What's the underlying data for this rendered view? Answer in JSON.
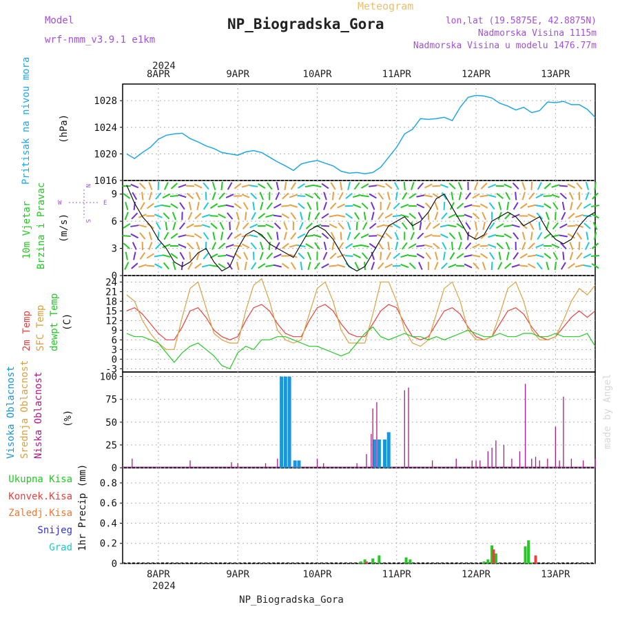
{
  "header": {
    "model_label": "Model",
    "model_value": "wrf-nmm_v3.9.1  e1km",
    "meteogram_label": "Meteogram",
    "station": "NP_Biogradska_Gora",
    "coords": "lon,lat (19.5875E, 42.8875N)",
    "altitude": "Nadmorska Visina 1115m",
    "model_altitude": "Nadmorska Visina u modelu 1476.77m",
    "year_top": "2024",
    "year_bottom": "2024",
    "footer_station": "NP_Biogradska_Gora",
    "watermark": "made by Angel"
  },
  "colors": {
    "pressure": "#1ea6e6",
    "temp2m": "#e8403f",
    "sfc": "#d9a040",
    "dewpt": "#22c922",
    "low_cloud": "#b0188c",
    "high_cloud": "#1b95dc",
    "precip_total": "#22c922",
    "precip_conv": "#e8403f",
    "grid": "#b0b0b0",
    "purple_text": "#a050d8"
  },
  "axis_days": [
    "8APR",
    "9APR",
    "10APR",
    "11APR",
    "12APR",
    "13APR"
  ],
  "panels": {
    "pressure": {
      "ylabel1": "Pritisak na nivou mora",
      "unit": "(hPa)",
      "ticks": [
        "1016",
        "1020",
        "1024",
        "1028"
      ]
    },
    "wind": {
      "ylabel1": "10m Vjetar",
      "ylabel2": "Brzina i Pravac",
      "unit": "(m/s)",
      "ticks": [
        "0",
        "3",
        "6",
        "9"
      ],
      "compass_n": "N",
      "compass_w": "W",
      "compass_e": "E",
      "compass_s": "S"
    },
    "temp": {
      "ylabel1": "2m Temp",
      "ylabel2": "SFC Temp",
      "ylabel3": "dewpt Temp",
      "unit": "(C)",
      "ticks": [
        "-3",
        "0",
        "3",
        "6",
        "9",
        "12",
        "15",
        "18",
        "21",
        "24"
      ]
    },
    "cloud": {
      "ylabel1": "Visoka Oblacnost",
      "ylabel2": "Srednja Oblacnost",
      "ylabel3": "Niska Oblacnost",
      "unit": "(%)",
      "ticks": [
        "0",
        "25",
        "50",
        "75",
        "100"
      ]
    },
    "precip": {
      "ylabel": "1hr Precip (mm)",
      "ticks": [
        "0",
        "0.2",
        "0.4",
        "0.6",
        "0.8"
      ],
      "legend": [
        "Ukupna Kisa",
        "Konvek.Kisa",
        "Zaledj.Kisa",
        "Snijeg",
        "Grad"
      ]
    }
  },
  "chart_data": [
    {
      "type": "line",
      "title": "",
      "ylabel": "Pritisak na nivou mora (hPa)",
      "ylim": [
        1016,
        1030.5
      ],
      "x": [
        7.6,
        7.7,
        7.8,
        7.9,
        8.0,
        8.1,
        8.2,
        8.3,
        8.4,
        8.5,
        8.6,
        8.7,
        8.8,
        8.9,
        9.0,
        9.1,
        9.2,
        9.3,
        9.4,
        9.5,
        9.6,
        9.7,
        9.8,
        9.9,
        10.0,
        10.1,
        10.2,
        10.3,
        10.4,
        10.5,
        10.6,
        10.7,
        10.8,
        10.9,
        11.0,
        11.1,
        11.2,
        11.3,
        11.4,
        11.5,
        11.6,
        11.7,
        11.8,
        11.9,
        12.0,
        12.1,
        12.2,
        12.3,
        12.4,
        12.5,
        12.6,
        12.7,
        12.8,
        12.9,
        13.0,
        13.1,
        13.2,
        13.3,
        13.4,
        13.5
      ],
      "series": [
        {
          "values": [
            1020.0,
            1019.3,
            1020.2,
            1021.0,
            1022.2,
            1022.8,
            1023.0,
            1023.1,
            1022.3,
            1021.8,
            1021.2,
            1020.8,
            1020.2,
            1020.0,
            1019.8,
            1020.3,
            1020.5,
            1020.2,
            1019.5,
            1018.8,
            1018.2,
            1017.5,
            1018.5,
            1018.8,
            1019.0,
            1018.6,
            1018.2,
            1017.4,
            1017.1,
            1017.2,
            1017.0,
            1017.2,
            1018.0,
            1019.5,
            1021.0,
            1023.0,
            1023.7,
            1025.3,
            1025.2,
            1025.3,
            1025.5,
            1025.0,
            1027.0,
            1028.5,
            1028.8,
            1028.7,
            1028.4,
            1027.6,
            1027.2,
            1026.6,
            1027.0,
            1026.2,
            1026.5,
            1027.8,
            1027.7,
            1027.9,
            1027.4,
            1027.4,
            1026.7,
            1025.5
          ],
          "name": ""
        }
      ]
    },
    {
      "type": "line",
      "title": "",
      "ylabel": "10m Vjetar Brzina i Pravac (m/s)",
      "ylim": [
        0,
        10.5
      ],
      "x": [
        7.6,
        7.7,
        7.8,
        7.9,
        8.0,
        8.1,
        8.2,
        8.3,
        8.4,
        8.5,
        8.6,
        8.7,
        8.8,
        8.9,
        9.0,
        9.1,
        9.2,
        9.3,
        9.4,
        9.5,
        9.6,
        9.7,
        9.8,
        9.9,
        10.0,
        10.1,
        10.2,
        10.3,
        10.4,
        10.5,
        10.6,
        10.7,
        10.8,
        10.9,
        11.0,
        11.1,
        11.2,
        11.3,
        11.4,
        11.5,
        11.6,
        11.7,
        11.8,
        11.9,
        12.0,
        12.1,
        12.2,
        12.3,
        12.4,
        12.5,
        12.6,
        12.7,
        12.8,
        12.9,
        13.0,
        13.1,
        13.2,
        13.3,
        13.4,
        13.5
      ],
      "series": [
        {
          "name": "",
          "values": [
            10.0,
            8.0,
            6.5,
            5.5,
            4.0,
            3.0,
            1.5,
            1.0,
            1.5,
            2.5,
            3.0,
            1.5,
            0.5,
            1.0,
            3.0,
            4.5,
            5.0,
            4.5,
            3.5,
            3.0,
            2.5,
            2.0,
            3.5,
            5.0,
            5.5,
            5.0,
            4.0,
            2.5,
            1.0,
            0.5,
            1.0,
            2.5,
            4.0,
            5.5,
            6.0,
            6.5,
            5.5,
            6.0,
            7.0,
            8.5,
            9.0,
            7.5,
            6.0,
            4.5,
            4.0,
            4.5,
            6.0,
            6.5,
            7.0,
            6.5,
            5.5,
            6.0,
            6.5,
            5.0,
            4.0,
            3.5,
            4.0,
            5.5,
            6.5,
            7.0
          ]
        }
      ]
    },
    {
      "type": "line",
      "title": "",
      "ylabel": "2m Temp / SFC Temp / dewpt Temp (C)",
      "ylim": [
        -4,
        26
      ],
      "x": [
        7.6,
        7.7,
        7.8,
        7.9,
        8.0,
        8.1,
        8.2,
        8.3,
        8.4,
        8.5,
        8.6,
        8.7,
        8.8,
        8.9,
        9.0,
        9.1,
        9.2,
        9.3,
        9.4,
        9.5,
        9.6,
        9.7,
        9.8,
        9.9,
        10.0,
        10.1,
        10.2,
        10.3,
        10.4,
        10.5,
        10.6,
        10.7,
        10.8,
        10.9,
        11.0,
        11.1,
        11.2,
        11.3,
        11.4,
        11.5,
        11.6,
        11.7,
        11.8,
        11.9,
        12.0,
        12.1,
        12.2,
        12.3,
        12.4,
        12.5,
        12.6,
        12.7,
        12.8,
        12.9,
        13.0,
        13.1,
        13.2,
        13.3,
        13.4,
        13.5
      ],
      "series": [
        {
          "name": "2m Temp",
          "values": [
            15,
            16,
            14,
            11,
            8,
            6,
            6,
            10,
            15,
            16,
            13,
            9,
            7,
            6,
            7,
            12,
            16,
            17,
            15,
            11,
            8,
            7,
            7,
            12,
            16,
            17,
            15,
            11,
            8,
            7,
            7,
            11,
            15,
            17,
            16,
            11,
            7,
            6,
            7,
            11,
            15,
            16,
            14,
            10,
            7,
            6,
            7,
            11,
            15,
            16,
            14,
            10,
            7,
            6,
            7,
            10,
            13,
            15,
            13,
            15
          ]
        },
        {
          "name": "SFC Temp",
          "values": [
            20,
            18,
            12,
            8,
            5,
            3,
            3,
            13,
            22,
            24,
            16,
            8,
            6,
            5,
            5,
            15,
            23,
            25,
            18,
            9,
            6,
            5,
            6,
            14,
            22,
            24,
            18,
            9,
            5,
            5,
            5,
            14,
            24,
            24,
            18,
            9,
            5,
            4,
            6,
            14,
            22,
            24,
            18,
            9,
            6,
            6,
            7,
            14,
            22,
            24,
            18,
            9,
            6,
            6,
            7,
            12,
            18,
            22,
            20,
            23
          ]
        },
        {
          "name": "dewpt Temp",
          "values": [
            8,
            7,
            7,
            6,
            5,
            2,
            -1,
            2,
            4,
            5,
            3,
            1,
            -2,
            -3,
            2,
            4,
            3,
            6,
            6,
            7,
            7,
            6,
            5,
            4,
            4,
            3,
            2,
            1,
            2,
            5,
            8,
            10,
            7,
            6,
            7,
            8,
            7,
            7,
            6,
            7,
            6,
            7,
            8,
            9,
            8,
            7,
            7,
            8,
            7,
            7,
            8,
            8,
            7,
            7,
            8,
            7,
            7,
            7,
            8,
            4
          ]
        }
      ]
    },
    {
      "type": "bar",
      "title": "",
      "ylabel": "Oblacnost (%)",
      "ylim": [
        0,
        105
      ],
      "series": [
        {
          "name": "Visoka Oblacnost",
          "x": [
            9.55,
            9.6,
            9.65,
            9.72,
            9.77,
            10.72,
            10.78,
            10.85,
            10.9
          ],
          "values": [
            100,
            100,
            100,
            8,
            8,
            31,
            31,
            31,
            39
          ]
        },
        {
          "name": "Niska Oblacnost",
          "x": [
            7.67,
            8.4,
            8.92,
            9.0,
            9.35,
            9.5,
            10.0,
            10.08,
            10.5,
            10.62,
            10.68,
            10.7,
            10.75,
            11.1,
            11.15,
            11.45,
            11.75,
            11.95,
            12.0,
            12.05,
            12.15,
            12.2,
            12.25,
            12.35,
            12.45,
            12.55,
            12.62,
            12.7,
            12.75,
            12.8,
            12.9,
            13.0,
            13.05,
            13.1,
            13.2,
            13.35,
            13.5
          ],
          "values": [
            10,
            8,
            6,
            5,
            5,
            10,
            10,
            5,
            5,
            15,
            37,
            65,
            72,
            85,
            88,
            8,
            10,
            8,
            8,
            8,
            18,
            22,
            30,
            25,
            10,
            18,
            92,
            10,
            12,
            8,
            10,
            45,
            8,
            78,
            10,
            8,
            10
          ]
        }
      ]
    },
    {
      "type": "bar",
      "title": "",
      "ylabel": "1hr Precip (mm)",
      "ylim": [
        0,
        0.95
      ],
      "series": [
        {
          "name": "Ukupna Kisa",
          "x": [
            10.55,
            10.6,
            10.7,
            10.78,
            11.12,
            11.17,
            12.1,
            12.15,
            12.2,
            12.25,
            12.62,
            12.66,
            12.7
          ],
          "values": [
            0.02,
            0.04,
            0.05,
            0.08,
            0.06,
            0.04,
            0.02,
            0.04,
            0.18,
            0.1,
            0.17,
            0.23,
            0.01
          ]
        },
        {
          "name": "Konvek.Kisa",
          "x": [
            10.62,
            12.22,
            12.75
          ],
          "values": [
            0.02,
            0.14,
            0.08
          ]
        }
      ]
    }
  ]
}
